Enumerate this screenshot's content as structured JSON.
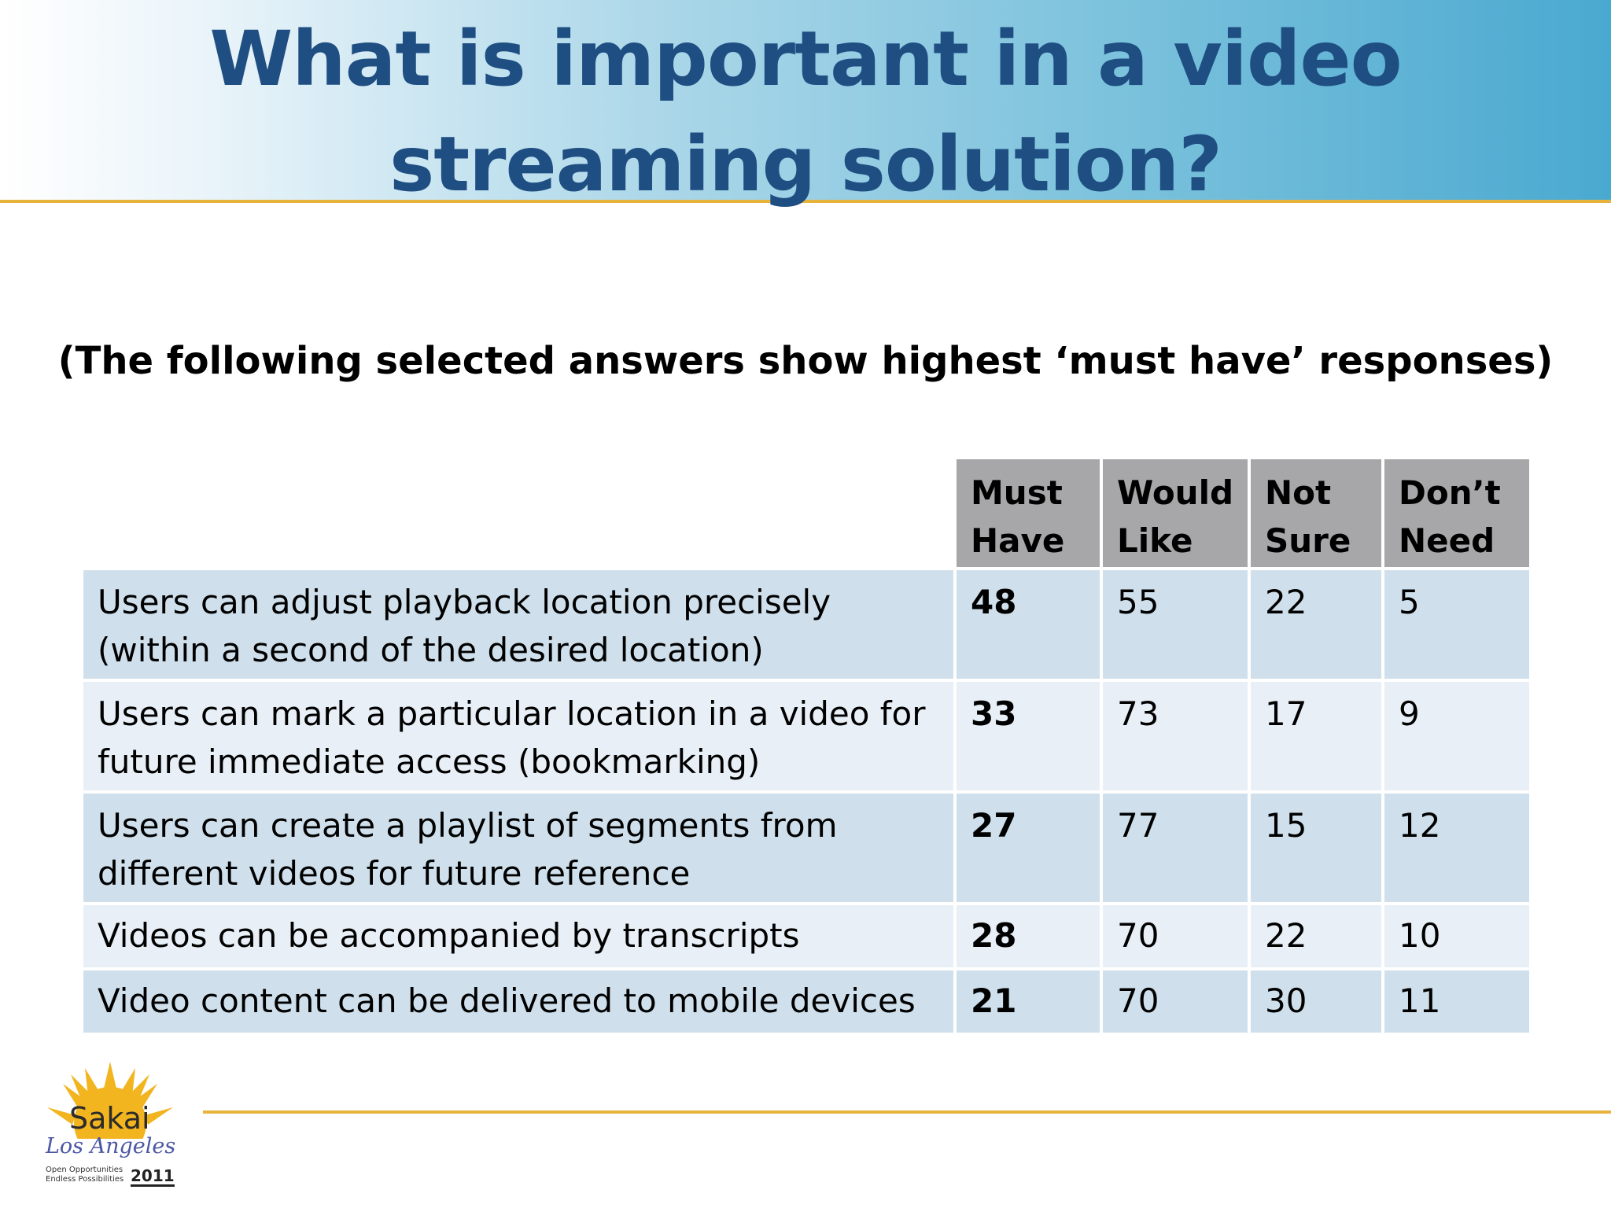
{
  "slide": {
    "title": "What is important in a video streaming solution?",
    "subtitle": "(The following selected answers show highest ‘must have’ responses)"
  },
  "table": {
    "columns": [
      "Must Have",
      "Would Like",
      "Not Sure",
      "Don’t Need"
    ],
    "rows": [
      {
        "label": "Users can adjust playback location precisely (within a second of the desired location)",
        "values": [
          "48",
          "55",
          "22",
          "5"
        ]
      },
      {
        "label": "Users can mark a particular location in a video for future immediate access (bookmarking)",
        "values": [
          "33",
          "73",
          "17",
          "9"
        ]
      },
      {
        "label": "Users can create a playlist of segments from different videos for future reference",
        "values": [
          "27",
          "77",
          "15",
          "12"
        ]
      },
      {
        "label": "Videos can be accompanied by transcripts",
        "values": [
          "28",
          "70",
          "22",
          "10"
        ]
      },
      {
        "label": "Video content can be delivered to mobile devices",
        "values": [
          "21",
          "70",
          "30",
          "11"
        ]
      }
    ]
  },
  "logo": {
    "brand": "Sakai",
    "city": "Los Angeles",
    "tagline_1": "Open Opportunities",
    "tagline_2": "Endless Possibilities",
    "year": "2011",
    "icon": "sun-icon"
  },
  "colors": {
    "title": "#1f4e82",
    "accent_rule": "#e7b33c",
    "header_gray": "#a7a6a8",
    "row_dark": "#cfe0ec",
    "row_light": "#e8eff6"
  }
}
